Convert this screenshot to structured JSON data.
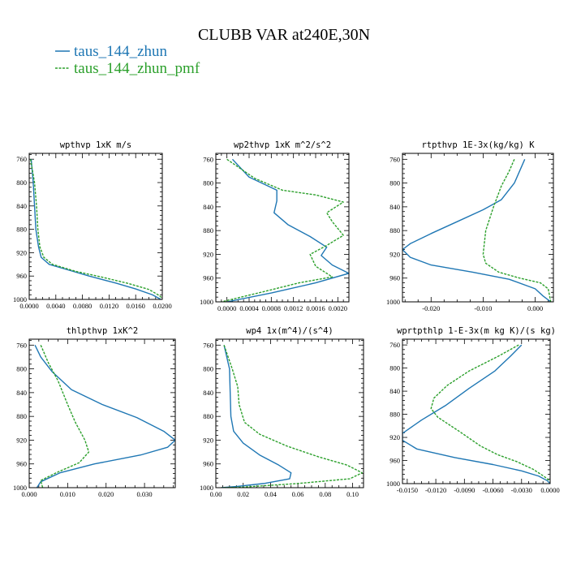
{
  "title": "CLUBB VAR at240E,30N",
  "legend": [
    {
      "name": "taus_144_zhun",
      "color": "#1f77b4",
      "dash": "none"
    },
    {
      "name": "taus_144_zhun_pmf",
      "color": "#2ca02c",
      "dash": "3,1.5"
    }
  ],
  "chart_data": [
    {
      "type": "line",
      "title": "wpthvp  1xK m/s",
      "xlim": [
        0.0,
        0.02
      ],
      "ylim": [
        1000,
        750
      ],
      "xticks": [
        0.0,
        0.004,
        0.008,
        0.012,
        0.016,
        0.02
      ],
      "xtick_labels": [
        "0.0000",
        "0.0040",
        "0.0080",
        "0.0120",
        "0.0160",
        "0.0200"
      ],
      "yticks": [
        760,
        800,
        840,
        880,
        920,
        960,
        1000
      ],
      "ytick_labels": [
        "760",
        "800",
        "840",
        "880",
        "920",
        "960",
        "1000"
      ],
      "series": [
        {
          "name": "taus_144_zhun",
          "points": [
            [
              0.0003,
              760
            ],
            [
              0.0006,
              800
            ],
            [
              0.0008,
              840
            ],
            [
              0.001,
              880
            ],
            [
              0.0014,
              910
            ],
            [
              0.0018,
              928
            ],
            [
              0.003,
              940
            ],
            [
              0.006,
              950
            ],
            [
              0.009,
              960
            ],
            [
              0.013,
              972
            ],
            [
              0.016,
              982
            ],
            [
              0.0185,
              992
            ],
            [
              0.0198,
              1000
            ]
          ]
        },
        {
          "name": "taus_144_zhun_pmf",
          "points": [
            [
              0.0002,
              760
            ],
            [
              0.0008,
              800
            ],
            [
              0.0011,
              840
            ],
            [
              0.0013,
              880
            ],
            [
              0.0016,
              910
            ],
            [
              0.0022,
              928
            ],
            [
              0.0035,
              940
            ],
            [
              0.007,
              952
            ],
            [
              0.011,
              962
            ],
            [
              0.015,
              973
            ],
            [
              0.018,
              983
            ],
            [
              0.0195,
              993
            ],
            [
              0.02,
              998
            ]
          ]
        }
      ]
    },
    {
      "type": "line",
      "title": "wp2thvp  1xK m^2/s^2",
      "xlim": [
        -0.0002,
        0.0022
      ],
      "ylim": [
        1000,
        750
      ],
      "xticks": [
        0.0,
        0.0004,
        0.0008,
        0.0012,
        0.0016,
        0.002
      ],
      "xtick_labels": [
        "0.0000",
        "0.0004",
        "0.0008",
        "0.0012",
        "0.0016",
        "0.0020"
      ],
      "yticks": [
        760,
        800,
        840,
        880,
        920,
        960,
        1000
      ],
      "ytick_labels": [
        "760",
        "800",
        "840",
        "880",
        "920",
        "960",
        "1000"
      ],
      "series": [
        {
          "name": "taus_144_zhun",
          "points": [
            [
              0.0001,
              760
            ],
            [
              0.0004,
              790
            ],
            [
              0.0009,
              812
            ],
            [
              0.0009,
              830
            ],
            [
              0.00085,
              850
            ],
            [
              0.0011,
              870
            ],
            [
              0.0015,
              890
            ],
            [
              0.0018,
              908
            ],
            [
              0.0017,
              922
            ],
            [
              0.0019,
              938
            ],
            [
              0.0022,
              952
            ],
            [
              0.0016,
              968
            ],
            [
              0.0008,
              985
            ],
            [
              0.0,
              1000
            ]
          ]
        },
        {
          "name": "taus_144_zhun_pmf",
          "points": [
            [
              0.0,
              760
            ],
            [
              0.0005,
              792
            ],
            [
              0.001,
              812
            ],
            [
              0.0016,
              820
            ],
            [
              0.0021,
              832
            ],
            [
              0.0018,
              850
            ],
            [
              0.0019,
              865
            ],
            [
              0.0021,
              888
            ],
            [
              0.0018,
              905
            ],
            [
              0.0015,
              920
            ],
            [
              0.0016,
              940
            ],
            [
              0.0019,
              958
            ],
            [
              0.0013,
              968
            ],
            [
              0.0007,
              982
            ],
            [
              -0.0001,
              1000
            ]
          ]
        }
      ]
    },
    {
      "type": "line",
      "title": "rtpthvp  1E-3x(kg/kg) K",
      "xlim": [
        -0.0255,
        0.0035
      ],
      "ylim": [
        1000,
        750
      ],
      "xticks": [
        -0.02,
        -0.01,
        0.0
      ],
      "xtick_labels": [
        "-0.020",
        "-0.010",
        "0.000"
      ],
      "yticks": [
        760,
        800,
        840,
        880,
        920,
        960,
        1000
      ],
      "ytick_labels": [
        "760",
        "800",
        "840",
        "880",
        "920",
        "960",
        "1000"
      ],
      "series": [
        {
          "name": "taus_144_zhun",
          "points": [
            [
              -0.002,
              760
            ],
            [
              -0.004,
              800
            ],
            [
              -0.0065,
              828
            ],
            [
              -0.01,
              845
            ],
            [
              -0.015,
              865
            ],
            [
              -0.02,
              885
            ],
            [
              -0.024,
              902
            ],
            [
              -0.0255,
              912
            ],
            [
              -0.024,
              925
            ],
            [
              -0.02,
              938
            ],
            [
              -0.012,
              950
            ],
            [
              -0.005,
              962
            ],
            [
              0.0,
              978
            ],
            [
              0.0015,
              990
            ],
            [
              0.003,
              1000
            ]
          ]
        },
        {
          "name": "taus_144_zhun_pmf",
          "points": [
            [
              -0.004,
              760
            ],
            [
              -0.005,
              780
            ],
            [
              -0.0065,
              805
            ],
            [
              -0.008,
              840
            ],
            [
              -0.0095,
              880
            ],
            [
              -0.01,
              920
            ],
            [
              -0.0095,
              935
            ],
            [
              -0.007,
              950
            ],
            [
              -0.003,
              960
            ],
            [
              0.001,
              968
            ],
            [
              0.0025,
              978
            ],
            [
              0.003,
              1000
            ]
          ]
        }
      ]
    },
    {
      "type": "line",
      "title": "thlpthvp  1xK^2",
      "xlim": [
        0.0,
        0.038
      ],
      "ylim": [
        1000,
        750
      ],
      "xticks": [
        0.0,
        0.01,
        0.02,
        0.03
      ],
      "xtick_labels": [
        "0.000",
        "0.010",
        "0.020",
        "0.030"
      ],
      "yticks": [
        760,
        800,
        840,
        880,
        920,
        960,
        1000
      ],
      "ytick_labels": [
        "760",
        "800",
        "840",
        "880",
        "920",
        "960",
        "1000"
      ],
      "series": [
        {
          "name": "taus_144_zhun",
          "points": [
            [
              0.0015,
              760
            ],
            [
              0.003,
              780
            ],
            [
              0.006,
              805
            ],
            [
              0.011,
              835
            ],
            [
              0.019,
              860
            ],
            [
              0.028,
              882
            ],
            [
              0.035,
              905
            ],
            [
              0.038,
              920
            ],
            [
              0.036,
              932
            ],
            [
              0.029,
              945
            ],
            [
              0.017,
              960
            ],
            [
              0.008,
              975
            ],
            [
              0.003,
              990
            ],
            [
              0.002,
              1000
            ]
          ]
        },
        {
          "name": "taus_144_zhun_pmf",
          "points": [
            [
              0.003,
              760
            ],
            [
              0.005,
              790
            ],
            [
              0.0075,
              820
            ],
            [
              0.01,
              860
            ],
            [
              0.012,
              890
            ],
            [
              0.0145,
              920
            ],
            [
              0.0155,
              940
            ],
            [
              0.013,
              958
            ],
            [
              0.007,
              975
            ],
            [
              0.003,
              988
            ],
            [
              0.0035,
              1000
            ]
          ]
        }
      ]
    },
    {
      "type": "line",
      "title": "wp4  1x(m^4)/(s^4)",
      "xlim": [
        0.0,
        0.108
      ],
      "ylim": [
        1000,
        750
      ],
      "xticks": [
        0.0,
        0.02,
        0.04,
        0.06,
        0.08,
        0.1
      ],
      "xtick_labels": [
        "0.00",
        "0.02",
        "0.04",
        "0.06",
        "0.08",
        "0.10"
      ],
      "yticks": [
        760,
        800,
        840,
        880,
        920,
        960,
        1000
      ],
      "ytick_labels": [
        "760",
        "800",
        "840",
        "880",
        "920",
        "960",
        "1000"
      ],
      "series": [
        {
          "name": "taus_144_zhun",
          "points": [
            [
              0.006,
              760
            ],
            [
              0.01,
              800
            ],
            [
              0.0105,
              840
            ],
            [
              0.011,
              880
            ],
            [
              0.013,
              905
            ],
            [
              0.02,
              925
            ],
            [
              0.032,
              945
            ],
            [
              0.046,
              962
            ],
            [
              0.055,
              975
            ],
            [
              0.054,
              985
            ],
            [
              0.035,
              993
            ],
            [
              0.015,
              998
            ],
            [
              0.004,
              1000
            ]
          ]
        },
        {
          "name": "taus_144_zhun_pmf",
          "points": [
            [
              0.006,
              760
            ],
            [
              0.012,
              800
            ],
            [
              0.016,
              830
            ],
            [
              0.017,
              860
            ],
            [
              0.021,
              890
            ],
            [
              0.032,
              910
            ],
            [
              0.052,
              930
            ],
            [
              0.075,
              948
            ],
            [
              0.096,
              962
            ],
            [
              0.107,
              975
            ],
            [
              0.098,
              985
            ],
            [
              0.06,
              993
            ],
            [
              0.02,
              999
            ],
            [
              0.004,
              1000
            ]
          ]
        }
      ]
    },
    {
      "type": "line",
      "title": "wprtpthlp  1-E-3x(m kg K)/(s kg)",
      "xlim": [
        -0.0155,
        0.0
      ],
      "ylim": [
        1000,
        750
      ],
      "xticks": [
        -0.015,
        -0.012,
        -0.009,
        -0.006,
        -0.003,
        0.0
      ],
      "xtick_labels": [
        "-0.0150",
        "-0.0120",
        "-0.0090",
        "-0.0060",
        "-0.0030",
        "0.0000"
      ],
      "yticks": [
        760,
        800,
        840,
        880,
        920,
        960,
        1000
      ],
      "ytick_labels": [
        "760",
        "800",
        "840",
        "880",
        "920",
        "960",
        "1000"
      ],
      "series": [
        {
          "name": "taus_144_zhun",
          "points": [
            [
              -0.003,
              760
            ],
            [
              -0.0042,
              780
            ],
            [
              -0.0058,
              805
            ],
            [
              -0.0085,
              835
            ],
            [
              -0.011,
              865
            ],
            [
              -0.0135,
              890
            ],
            [
              -0.0155,
              913
            ],
            [
              -0.0155,
              925
            ],
            [
              -0.014,
              940
            ],
            [
              -0.01,
              955
            ],
            [
              -0.006,
              967
            ],
            [
              -0.003,
              978
            ],
            [
              -0.0012,
              987
            ],
            [
              -0.0003,
              995
            ],
            [
              0.0,
              1000
            ]
          ]
        },
        {
          "name": "taus_144_zhun_pmf",
          "points": [
            [
              -0.0033,
              760
            ],
            [
              -0.0055,
              780
            ],
            [
              -0.0085,
              805
            ],
            [
              -0.0108,
              830
            ],
            [
              -0.0122,
              852
            ],
            [
              -0.0125,
              870
            ],
            [
              -0.0118,
              885
            ],
            [
              -0.0095,
              910
            ],
            [
              -0.0073,
              935
            ],
            [
              -0.0055,
              950
            ],
            [
              -0.0035,
              962
            ],
            [
              -0.0018,
              975
            ],
            [
              -0.0006,
              988
            ],
            [
              0.0,
              996
            ]
          ]
        }
      ]
    }
  ]
}
